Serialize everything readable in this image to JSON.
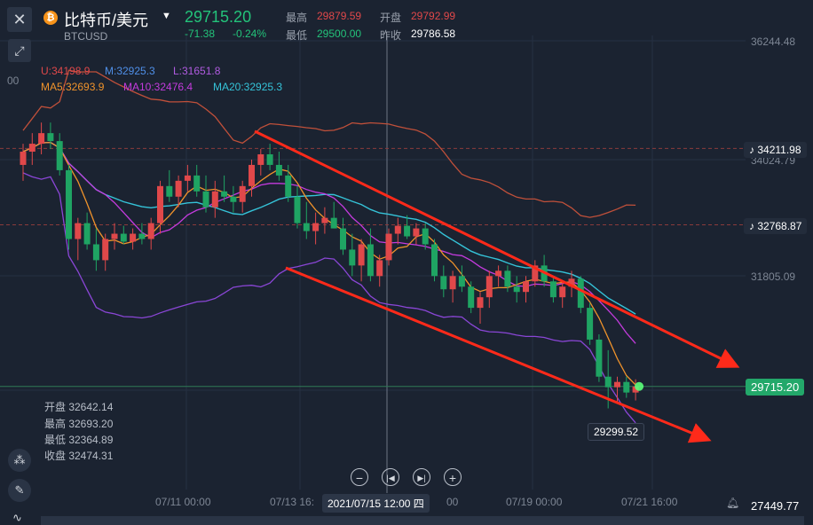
{
  "header": {
    "title": "比特币/美元",
    "symbol": "BTCUSD",
    "price": "29715.20",
    "change": "-71.38",
    "change_pct": "-0.24%",
    "high_label": "最高",
    "high": "29879.59",
    "low_label": "最低",
    "low": "29500.00",
    "open_label": "开盘",
    "open": "29792.99",
    "prev_label": "昨收",
    "prev": "29786.58"
  },
  "indicators": {
    "boll": {
      "u": "U:34198.9",
      "m": "M:32925.3",
      "l": "L:31651.8"
    },
    "ma": {
      "ma5": "MA5:32693.9",
      "ma10": "MA10:32476.4",
      "ma20": "MA20:32925.3"
    },
    "left_axis_stub": "00"
  },
  "ohlc_panel": {
    "open": "开盘 32642.14",
    "high": "最高 32693.20",
    "low": "最低 32364.89",
    "close": "收盘 32474.31"
  },
  "price_axis": {
    "labels": [
      "36244.48",
      "34024.79",
      "31805.09",
      "27449.77"
    ],
    "alert1": "34211.98",
    "alert2": "32768.87",
    "current": "29715.20",
    "low_marker": "29299.52"
  },
  "time_axis": {
    "labels": [
      "07/11 00:00",
      "07/13 16:",
      "00",
      "07/19 00:00",
      "07/21 16:00"
    ],
    "crosshair": "2021/07/15 12:00 四"
  },
  "controls": {
    "zoom_out": "−",
    "prev": "|◀",
    "next": "▶|",
    "zoom_in": "+"
  },
  "colors": {
    "up": "#e0484a",
    "down": "#1fa463",
    "ma5": "#f0932b",
    "ma10": "#c43bde",
    "ma20": "#35c3d8",
    "boll": "#c0503a",
    "trend": "#ff2a1a",
    "bg": "#1b2331"
  },
  "chart_data": {
    "type": "candlestick",
    "y_axis_ticks": [
      36244.48,
      34024.79,
      31805.09
    ],
    "series": [
      {
        "name": "candles",
        "values": [
          [
            33900,
            34300,
            33600,
            34150
          ],
          [
            34150,
            34500,
            33900,
            34300
          ],
          [
            34300,
            34700,
            34100,
            34500
          ],
          [
            34500,
            34700,
            34200,
            34350
          ],
          [
            34350,
            34500,
            33700,
            33800
          ],
          [
            33800,
            33900,
            32300,
            32500
          ],
          [
            32500,
            32900,
            32100,
            32800
          ],
          [
            32800,
            33000,
            32300,
            32400
          ],
          [
            32400,
            32700,
            31900,
            32100
          ],
          [
            32100,
            32600,
            31900,
            32500
          ],
          [
            32500,
            32800,
            32300,
            32600
          ],
          [
            32600,
            32750,
            32400,
            32450
          ],
          [
            32450,
            32700,
            32300,
            32600
          ],
          [
            32600,
            32800,
            32400,
            32500
          ],
          [
            32500,
            32900,
            32300,
            32800
          ],
          [
            32800,
            33600,
            32600,
            33500
          ],
          [
            33500,
            33800,
            33200,
            33300
          ],
          [
            33300,
            33700,
            33100,
            33600
          ],
          [
            33600,
            33900,
            33400,
            33700
          ],
          [
            33700,
            33900,
            33300,
            33400
          ],
          [
            33400,
            33700,
            33000,
            33100
          ],
          [
            33100,
            33600,
            32900,
            33400
          ],
          [
            33400,
            33700,
            33200,
            33300
          ],
          [
            33300,
            33500,
            33000,
            33200
          ],
          [
            33200,
            33600,
            33000,
            33500
          ],
          [
            33500,
            34000,
            33300,
            33900
          ],
          [
            33900,
            34200,
            33700,
            34100
          ],
          [
            34100,
            34300,
            33800,
            33900
          ],
          [
            33900,
            34150,
            33600,
            33700
          ],
          [
            33700,
            33900,
            33200,
            33300
          ],
          [
            33300,
            33500,
            32700,
            32800
          ],
          [
            32800,
            33200,
            32500,
            32650
          ],
          [
            32650,
            33000,
            32400,
            32800
          ],
          [
            32800,
            33100,
            32600,
            32900
          ],
          [
            32900,
            33200,
            32700,
            32700
          ],
          [
            32700,
            32900,
            32200,
            32300
          ],
          [
            32300,
            32600,
            31800,
            32000
          ],
          [
            32000,
            32500,
            31700,
            32400
          ],
          [
            32400,
            32700,
            31700,
            31800
          ],
          [
            31800,
            32200,
            31600,
            32100
          ],
          [
            32100,
            32700,
            32000,
            32600
          ],
          [
            32600,
            32900,
            32400,
            32750
          ],
          [
            32750,
            32950,
            32500,
            32550
          ],
          [
            32550,
            32800,
            32400,
            32700
          ],
          [
            32700,
            32800,
            32300,
            32400
          ],
          [
            32400,
            32500,
            31700,
            31800
          ],
          [
            31800,
            32000,
            31400,
            31550
          ],
          [
            31550,
            31900,
            31300,
            31800
          ],
          [
            31800,
            32000,
            31500,
            31600
          ],
          [
            31600,
            31700,
            31100,
            31200
          ],
          [
            31200,
            31500,
            30900,
            31400
          ],
          [
            31400,
            31900,
            31200,
            31800
          ],
          [
            31800,
            32000,
            31600,
            31900
          ],
          [
            31900,
            32000,
            31500,
            31600
          ],
          [
            31600,
            31800,
            31300,
            31500
          ],
          [
            31500,
            31800,
            31300,
            31700
          ],
          [
            31700,
            32100,
            31600,
            32000
          ],
          [
            32000,
            32200,
            31600,
            31700
          ],
          [
            31700,
            31800,
            31300,
            31400
          ],
          [
            31400,
            31700,
            31200,
            31600
          ],
          [
            31600,
            31900,
            31400,
            31750
          ],
          [
            31750,
            31800,
            31100,
            31200
          ],
          [
            31200,
            31300,
            30500,
            30600
          ],
          [
            30600,
            30700,
            29800,
            29900
          ],
          [
            29900,
            30400,
            29300,
            29700
          ],
          [
            29700,
            29900,
            29400,
            29800
          ],
          [
            29800,
            29900,
            29500,
            29600
          ],
          [
            29600,
            29850,
            29450,
            29715
          ]
        ]
      }
    ]
  }
}
